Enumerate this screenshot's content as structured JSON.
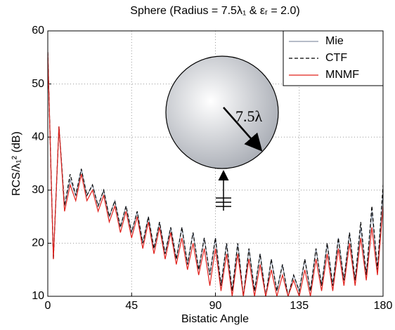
{
  "chart_data": {
    "type": "line",
    "title": "Sphere (Radius = 7.5λ₁ & εᵣ = 2.0)",
    "x_label": "Bistatic Angle",
    "y_label": "RCS/λ₁² (dB)",
    "annotation": "7.5λ",
    "x": [
      0,
      3,
      6,
      9,
      12,
      15,
      18,
      21,
      24,
      27,
      30,
      33,
      36,
      39,
      42,
      45,
      48,
      51,
      54,
      57,
      60,
      63,
      66,
      69,
      72,
      75,
      78,
      81,
      84,
      87,
      90,
      93,
      96,
      99,
      102,
      105,
      108,
      111,
      114,
      117,
      120,
      123,
      126,
      129,
      132,
      135,
      138,
      141,
      144,
      147,
      150,
      153,
      156,
      159,
      162,
      165,
      168,
      171,
      174,
      177,
      180
    ],
    "series": [
      {
        "name": "Mie",
        "color": "#8a95a8",
        "dash": "solid",
        "values": [
          56,
          17,
          42,
          27,
          32,
          29,
          34,
          29,
          31,
          27,
          30,
          25,
          28,
          23,
          27,
          22,
          26,
          20,
          25,
          19,
          24,
          18,
          23,
          17,
          23,
          16,
          22,
          15,
          21,
          14,
          21,
          12,
          20,
          11,
          20,
          10,
          19,
          11,
          18,
          10,
          17,
          11,
          16,
          10,
          14,
          11,
          17,
          11,
          19,
          12,
          20,
          12,
          21,
          13,
          22,
          13,
          23,
          14,
          26,
          15,
          30
        ]
      },
      {
        "name": "CTF",
        "color": "#000000",
        "dash": "dashed",
        "values": [
          56,
          17,
          42,
          27,
          33,
          29,
          34,
          29,
          31,
          27,
          30,
          25,
          28,
          23,
          27,
          22,
          26,
          20,
          25,
          19,
          24,
          18,
          23,
          17,
          23,
          16,
          22,
          15,
          21,
          14,
          21,
          12,
          20,
          11,
          20,
          10,
          19,
          11,
          18,
          10,
          17,
          11,
          16,
          10,
          14,
          11,
          17,
          11,
          19,
          12,
          20,
          12,
          21,
          13,
          22,
          13,
          24,
          14,
          27,
          15,
          31
        ]
      },
      {
        "name": "MNMF",
        "color": "#e0201b",
        "dash": "solid",
        "values": [
          56,
          17,
          42,
          26,
          31,
          28,
          33,
          28,
          30,
          26,
          29,
          24,
          27,
          22,
          26,
          21,
          25,
          19,
          24,
          18,
          23,
          17,
          22,
          16,
          21,
          15,
          20,
          14,
          19,
          12,
          19,
          11,
          18,
          10,
          18,
          10,
          17,
          10,
          16,
          10,
          15,
          10,
          14,
          10,
          13,
          10,
          15,
          10,
          17,
          11,
          18,
          11,
          19,
          12,
          20,
          12,
          21,
          13,
          23,
          14,
          27
        ]
      }
    ],
    "xlim": [
      0,
      180
    ],
    "xticks": [
      0,
      45,
      90,
      135,
      180
    ],
    "ylim": [
      10,
      60
    ],
    "yticks": [
      10,
      20,
      30,
      40,
      50,
      60
    ],
    "grid": true,
    "legend": "upper right"
  }
}
